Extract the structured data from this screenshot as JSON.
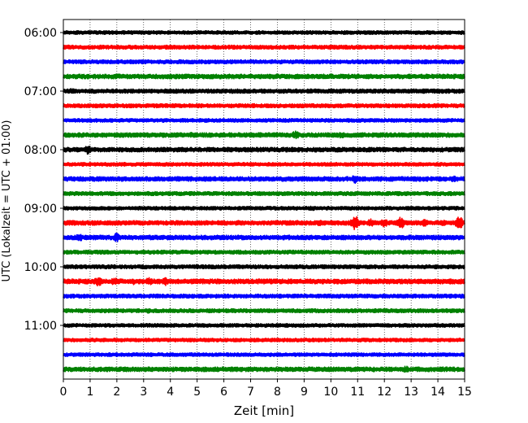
{
  "chart_data": {
    "type": "line",
    "title": "",
    "xlabel": "Zeit  [min]",
    "ylabel": "UTC (Lokalzeit = UTC + 01:00)",
    "xlim": [
      0,
      15
    ],
    "x_ticks": [
      0,
      1,
      2,
      3,
      4,
      5,
      6,
      7,
      8,
      9,
      10,
      11,
      12,
      13,
      14,
      15
    ],
    "x_tick_labels": [
      "0",
      "1",
      "2",
      "3",
      "4",
      "5",
      "6",
      "7",
      "8",
      "9",
      "10",
      "11",
      "12",
      "13",
      "14",
      "15"
    ],
    "y_tick_labels": [
      "06:00",
      "07:00",
      "08:00",
      "09:00",
      "10:00",
      "11:00"
    ],
    "y_tick_rows": [
      0,
      4,
      8,
      12,
      16,
      20
    ],
    "grid_x": true,
    "grid_style": "dotted",
    "trace_colors": [
      "#000000",
      "#ff0000",
      "#0000ff",
      "#008000"
    ],
    "traces": [
      {
        "color": "#000000",
        "amplitude": 2.2,
        "events": [
          [
            11.0,
            2.5
          ],
          [
            10.9,
            2.0
          ]
        ]
      },
      {
        "color": "#ff0000",
        "amplitude": 2.4,
        "events": [
          [
            10.0,
            3.0
          ],
          [
            2.5,
            2.0
          ]
        ]
      },
      {
        "color": "#0000ff",
        "amplitude": 2.4,
        "events": [
          [
            6.0,
            2.0
          ],
          [
            12.0,
            2.0
          ]
        ]
      },
      {
        "color": "#008000",
        "amplitude": 2.8,
        "events": [
          [
            2.2,
            3.0
          ],
          [
            10.5,
            2.0
          ]
        ]
      },
      {
        "color": "#000000",
        "amplitude": 2.6,
        "events": [
          [
            0.3,
            3.5
          ],
          [
            12.5,
            2.0
          ]
        ]
      },
      {
        "color": "#ff0000",
        "amplitude": 2.4,
        "events": [
          [
            9.0,
            2.0
          ],
          [
            13.0,
            2.0
          ]
        ]
      },
      {
        "color": "#0000ff",
        "amplitude": 2.2,
        "events": [
          [
            12.5,
            2.0
          ]
        ]
      },
      {
        "color": "#008000",
        "amplitude": 2.8,
        "events": [
          [
            8.7,
            5.5
          ],
          [
            8.2,
            3.0
          ],
          [
            4.8,
            3.5
          ],
          [
            10.4,
            4.0
          ],
          [
            11.2,
            3.0
          ],
          [
            13.4,
            3.0
          ],
          [
            3.8,
            3.0
          ],
          [
            1.1,
            2.5
          ]
        ]
      },
      {
        "color": "#000000",
        "amplitude": 2.8,
        "events": [
          [
            0.9,
            5.5
          ],
          [
            4.0,
            2.5
          ],
          [
            13.6,
            2.5
          ]
        ]
      },
      {
        "color": "#ff0000",
        "amplitude": 2.2,
        "events": [
          [
            2.3,
            2.0
          ],
          [
            8.6,
            2.0
          ]
        ]
      },
      {
        "color": "#0000ff",
        "amplitude": 2.8,
        "events": [
          [
            10.9,
            5.5
          ],
          [
            11.6,
            3.0
          ],
          [
            14.6,
            3.5
          ],
          [
            9.0,
            2.5
          ],
          [
            5.9,
            2.0
          ]
        ]
      },
      {
        "color": "#008000",
        "amplitude": 2.4,
        "events": [
          [
            2.2,
            2.0
          ],
          [
            6.0,
            2.0
          ]
        ]
      },
      {
        "color": "#000000",
        "amplitude": 2.2,
        "events": [
          [
            9.3,
            3.0
          ],
          [
            12.9,
            3.0
          ]
        ]
      },
      {
        "color": "#ff0000",
        "amplitude": 2.8,
        "events": [
          [
            10.9,
            9.0
          ],
          [
            11.5,
            5.0
          ],
          [
            12.0,
            5.5
          ],
          [
            12.6,
            7.5
          ],
          [
            13.5,
            5.0
          ],
          [
            14.8,
            7.5
          ],
          [
            14.2,
            4.0
          ],
          [
            9.6,
            4.0
          ],
          [
            7.0,
            2.5
          ]
        ]
      },
      {
        "color": "#0000ff",
        "amplitude": 2.8,
        "events": [
          [
            0.6,
            5.0
          ],
          [
            2.0,
            5.5
          ],
          [
            1.4,
            3.0
          ],
          [
            12.0,
            3.0
          ],
          [
            4.8,
            2.5
          ]
        ]
      },
      {
        "color": "#008000",
        "amplitude": 2.4,
        "events": [
          [
            5.1,
            2.5
          ],
          [
            9.2,
            2.0
          ]
        ]
      },
      {
        "color": "#000000",
        "amplitude": 2.4,
        "events": [
          [
            3.5,
            2.5
          ],
          [
            13.8,
            2.5
          ]
        ]
      },
      {
        "color": "#ff0000",
        "amplitude": 3.0,
        "events": [
          [
            1.3,
            6.0
          ],
          [
            1.9,
            5.0
          ],
          [
            3.2,
            5.0
          ],
          [
            3.8,
            5.5
          ],
          [
            2.6,
            4.0
          ],
          [
            6.5,
            3.0
          ]
        ]
      },
      {
        "color": "#0000ff",
        "amplitude": 2.4,
        "events": [
          [
            4.6,
            2.0
          ],
          [
            12.6,
            2.0
          ]
        ]
      },
      {
        "color": "#008000",
        "amplitude": 2.4,
        "events": [
          [
            3.2,
            3.0
          ],
          [
            10.0,
            2.0
          ]
        ]
      },
      {
        "color": "#000000",
        "amplitude": 2.2,
        "events": [
          [
            9.0,
            2.0
          ],
          [
            12.8,
            2.0
          ]
        ]
      },
      {
        "color": "#ff0000",
        "amplitude": 2.2,
        "events": [
          [
            11.8,
            2.0
          ]
        ]
      },
      {
        "color": "#0000ff",
        "amplitude": 2.2,
        "events": [
          [
            9.0,
            2.0
          ],
          [
            5.0,
            2.0
          ]
        ]
      },
      {
        "color": "#008000",
        "amplitude": 2.8,
        "events": [
          [
            12.8,
            4.0
          ],
          [
            6.2,
            2.0
          ]
        ]
      }
    ]
  }
}
